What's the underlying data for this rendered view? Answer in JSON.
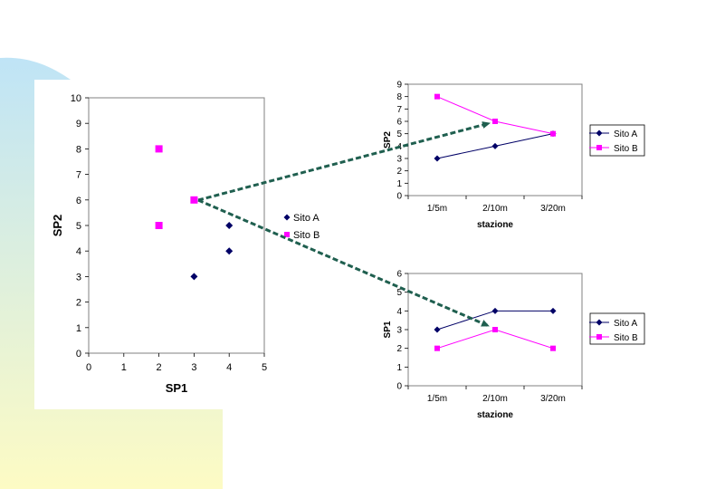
{
  "colors": {
    "site_a": "#000066",
    "site_b": "#ff00ff",
    "arrow": "#1f5f4f",
    "plot_border": "#808080",
    "slide_gradient_top": "#bfe4f6",
    "slide_gradient_bottom": "#fdfbc4"
  },
  "chart_data": [
    {
      "type": "scatter",
      "xlabel": "SP1",
      "ylabel": "SP2",
      "xlim": [
        0,
        5
      ],
      "ylim": [
        0,
        10
      ],
      "xticks": [
        "0",
        "1",
        "2",
        "3",
        "4",
        "5"
      ],
      "yticks": [
        "0",
        "1",
        "2",
        "3",
        "4",
        "5",
        "6",
        "7",
        "8",
        "9",
        "10"
      ],
      "legend": "right",
      "series": [
        {
          "name": "Sito A",
          "marker": "diamond",
          "points": [
            [
              3,
              3
            ],
            [
              4,
              4
            ],
            [
              4,
              5
            ]
          ]
        },
        {
          "name": "Sito B",
          "marker": "square",
          "points": [
            [
              2,
              5
            ],
            [
              2,
              8
            ],
            [
              3,
              6
            ]
          ]
        }
      ]
    },
    {
      "type": "line",
      "xlabel": "stazione",
      "ylabel": "SP2",
      "categories": [
        "1/5m",
        "2/10m",
        "3/20m"
      ],
      "ylim": [
        0,
        9
      ],
      "yticks": [
        "0",
        "1",
        "2",
        "3",
        "4",
        "5",
        "6",
        "7",
        "8",
        "9"
      ],
      "legend": "right",
      "series": [
        {
          "name": "Sito A",
          "marker": "diamond",
          "values": [
            3,
            4,
            5
          ]
        },
        {
          "name": "Sito B",
          "marker": "square",
          "values": [
            8,
            6,
            5
          ]
        }
      ]
    },
    {
      "type": "line",
      "xlabel": "stazione",
      "ylabel": "SP1",
      "categories": [
        "1/5m",
        "2/10m",
        "3/20m"
      ],
      "ylim": [
        0,
        6
      ],
      "yticks": [
        "0",
        "1",
        "2",
        "3",
        "4",
        "5",
        "6"
      ],
      "legend": "right",
      "series": [
        {
          "name": "Sito A",
          "marker": "diamond",
          "values": [
            3,
            4,
            4
          ]
        },
        {
          "name": "Sito B",
          "marker": "square",
          "values": [
            2,
            3,
            2
          ]
        }
      ]
    }
  ]
}
